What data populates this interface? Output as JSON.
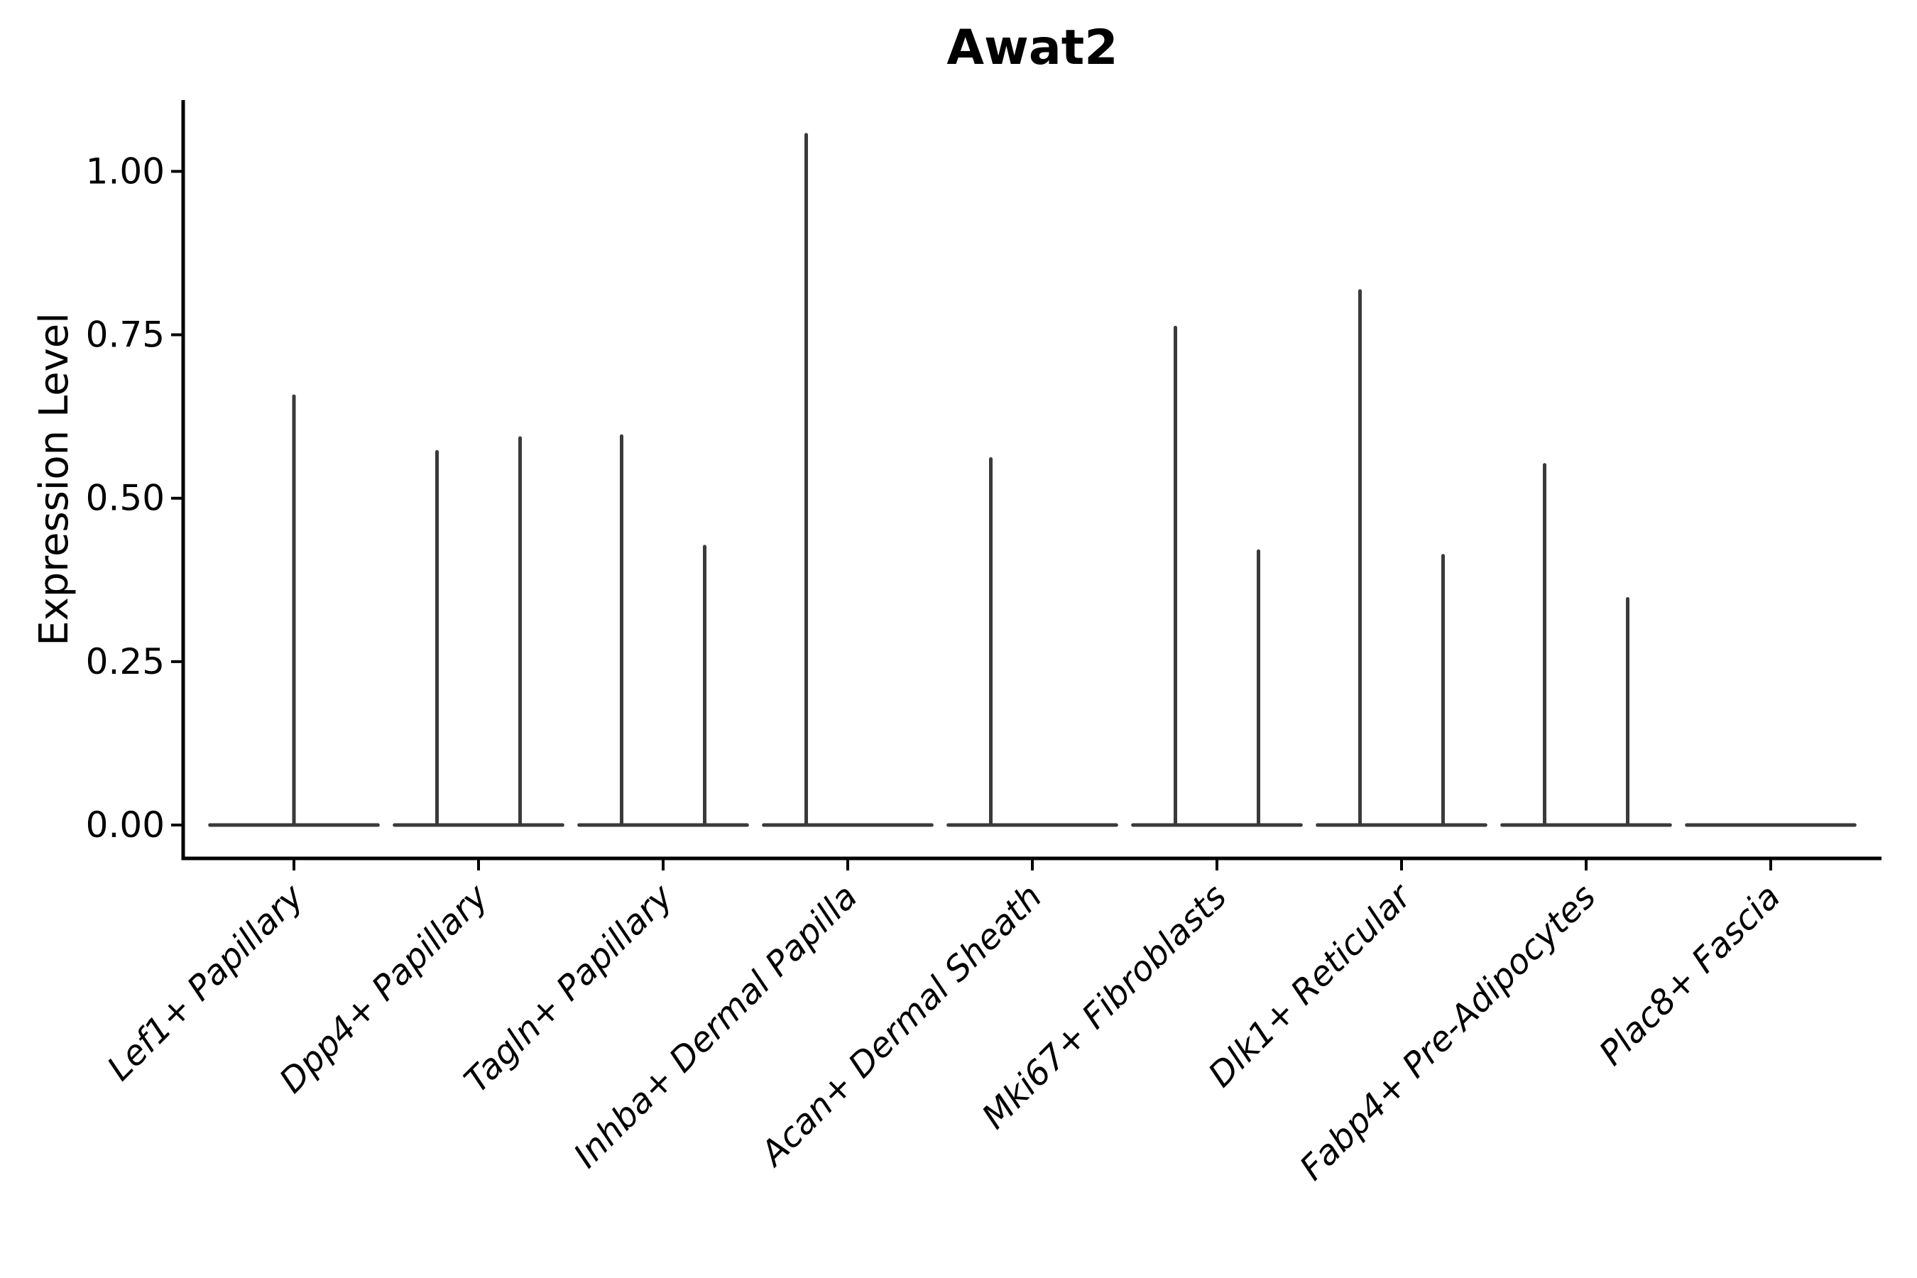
{
  "chart_data": {
    "type": "violin",
    "title": "Awat2",
    "ylabel": "Expression Level",
    "xlabel": "",
    "background_color": "#ffffff",
    "axis_color": "#000000",
    "violin_color": "#3a3a3a",
    "grid": false,
    "legend": false,
    "ylim": [
      -0.051,
      1.109
    ],
    "xlim": [
      -0.6,
      8.6
    ],
    "yticks": [
      0.0,
      0.25,
      0.5,
      0.75,
      1.0
    ],
    "ytick_labels": [
      "0.00",
      "0.25",
      "0.50",
      "0.75",
      "1.00"
    ],
    "categories": [
      "Lef1+ Papillary",
      "Dpp4+ Papillary",
      "Tagln+ Papillary",
      "Inhba+ Dermal Papilla",
      "Acan+ Dermal Sheath",
      "Mki67+ Fibroblasts",
      "Dlk1+ Reticular",
      "Fabp4+ Pre-Adipocytes",
      "Plac8+ Fascia"
    ],
    "baseline_halfwidth": 0.455,
    "baseline_value": 0.0,
    "violins": [
      {
        "category": "Lef1+ Papillary",
        "spikes": [
          {
            "offset": 0.0,
            "max": 0.656
          }
        ]
      },
      {
        "category": "Dpp4+ Papillary",
        "spikes": [
          {
            "offset": -0.225,
            "max": 0.571
          },
          {
            "offset": 0.225,
            "max": 0.592
          }
        ]
      },
      {
        "category": "Tagln+ Papillary",
        "spikes": [
          {
            "offset": -0.225,
            "max": 0.595
          },
          {
            "offset": 0.225,
            "max": 0.426
          }
        ]
      },
      {
        "category": "Inhba+ Dermal Papilla",
        "spikes": [
          {
            "offset": -0.225,
            "max": 1.056
          }
        ]
      },
      {
        "category": "Acan+ Dermal Sheath",
        "spikes": [
          {
            "offset": -0.225,
            "max": 0.56
          }
        ]
      },
      {
        "category": "Mki67+ Fibroblasts",
        "spikes": [
          {
            "offset": -0.225,
            "max": 0.761
          },
          {
            "offset": 0.225,
            "max": 0.419
          }
        ]
      },
      {
        "category": "Dlk1+ Reticular",
        "spikes": [
          {
            "offset": -0.225,
            "max": 0.817
          },
          {
            "offset": 0.225,
            "max": 0.412
          }
        ]
      },
      {
        "category": "Fabp4+ Pre-Adipocytes",
        "spikes": [
          {
            "offset": -0.225,
            "max": 0.551
          },
          {
            "offset": 0.225,
            "max": 0.346
          }
        ]
      },
      {
        "category": "Plac8+ Fascia",
        "spikes": []
      }
    ]
  }
}
